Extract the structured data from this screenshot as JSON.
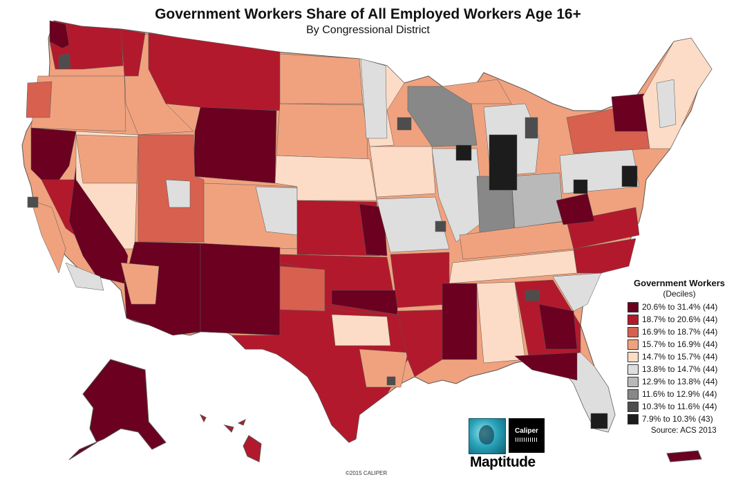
{
  "title": "Government Workers Share of All Employed Workers Age 16+",
  "subtitle": "By Congressional District",
  "legend": {
    "title": "Government Workers",
    "subtitle": "(Deciles)",
    "classes": [
      {
        "label": "20.6% to 31.4% (44)",
        "color": "#6b0020"
      },
      {
        "label": "18.7% to 20.6% (44)",
        "color": "#b3192c"
      },
      {
        "label": "16.9% to 18.7% (44)",
        "color": "#d8604f"
      },
      {
        "label": "15.7% to 16.9% (44)",
        "color": "#f0a27e"
      },
      {
        "label": "14.7% to 15.7% (44)",
        "color": "#fcdcc6"
      },
      {
        "label": "13.8% to 14.7% (44)",
        "color": "#dedede"
      },
      {
        "label": "12.9% to 13.8% (44)",
        "color": "#b9b9b9"
      },
      {
        "label": "11.6% to 12.9% (44)",
        "color": "#888888"
      },
      {
        "label": "10.3% to 11.6% (44)",
        "color": "#4d4d4d"
      },
      {
        "label": "7.9% to 10.3% (43)",
        "color": "#1c1c1c"
      }
    ],
    "source": "Source: ACS 2013"
  },
  "logos": {
    "caliper": "Caliper",
    "maptitude": "Maptitude"
  },
  "copyright": "©2015 CALIPER"
}
